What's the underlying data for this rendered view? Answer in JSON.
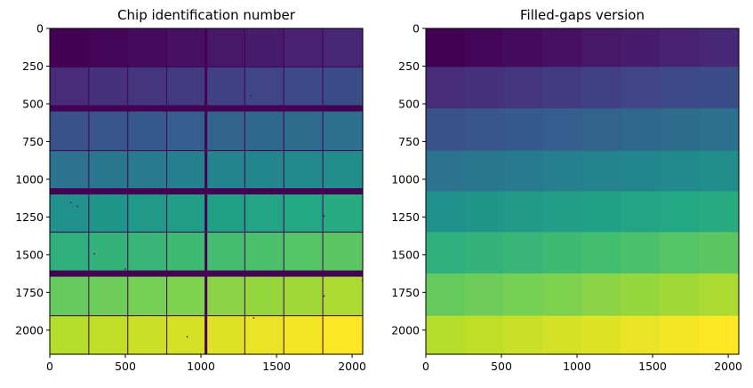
{
  "chart_data": [
    {
      "type": "heatmap",
      "title": "Chip identification number",
      "xlim": [
        0,
        2070
      ],
      "ylim": [
        2160,
        0
      ],
      "xticks": [
        0,
        500,
        1000,
        1500,
        2000
      ],
      "yticks": [
        0,
        250,
        500,
        750,
        1000,
        1250,
        1500,
        1750,
        2000
      ],
      "columns": 8,
      "rows": 8,
      "column_edges": [
        0,
        258,
        516,
        774,
        1033,
        1290,
        1548,
        1806,
        2070
      ],
      "row_edges": [
        0,
        255,
        530,
        810,
        1080,
        1350,
        1625,
        1905,
        2160
      ],
      "chip_values": [
        [
          0,
          1,
          2,
          3,
          4,
          5,
          6,
          7
        ],
        [
          8,
          9,
          10,
          11,
          12,
          13,
          14,
          15
        ],
        [
          16,
          17,
          18,
          19,
          20,
          21,
          22,
          23
        ],
        [
          24,
          25,
          26,
          27,
          28,
          29,
          30,
          31
        ],
        [
          32,
          33,
          34,
          35,
          36,
          37,
          38,
          39
        ],
        [
          40,
          41,
          42,
          43,
          44,
          45,
          46,
          47
        ],
        [
          48,
          49,
          50,
          51,
          52,
          53,
          54,
          55
        ],
        [
          56,
          57,
          58,
          59,
          60,
          61,
          62,
          63
        ]
      ],
      "gaps": "present",
      "colormap": "viridis"
    },
    {
      "type": "heatmap",
      "title": "Filled-gaps version",
      "xlim": [
        0,
        2070
      ],
      "ylim": [
        2160,
        0
      ],
      "xticks": [
        0,
        500,
        1000,
        1500,
        2000
      ],
      "yticks": [
        0,
        250,
        500,
        750,
        1000,
        1250,
        1500,
        1750,
        2000
      ],
      "columns": 8,
      "rows": 8,
      "column_edges": [
        0,
        258,
        516,
        774,
        1033,
        1290,
        1548,
        1806,
        2070
      ],
      "row_edges": [
        0,
        255,
        530,
        810,
        1080,
        1350,
        1625,
        1905,
        2160
      ],
      "chip_values": [
        [
          0,
          1,
          2,
          3,
          4,
          5,
          6,
          7
        ],
        [
          8,
          9,
          10,
          11,
          12,
          13,
          14,
          15
        ],
        [
          16,
          17,
          18,
          19,
          20,
          21,
          22,
          23
        ],
        [
          24,
          25,
          26,
          27,
          28,
          29,
          30,
          31
        ],
        [
          32,
          33,
          34,
          35,
          36,
          37,
          38,
          39
        ],
        [
          40,
          41,
          42,
          43,
          44,
          45,
          46,
          47
        ],
        [
          48,
          49,
          50,
          51,
          52,
          53,
          54,
          55
        ],
        [
          56,
          57,
          58,
          59,
          60,
          61,
          62,
          63
        ]
      ],
      "gaps": "filled",
      "colormap": "viridis"
    }
  ]
}
